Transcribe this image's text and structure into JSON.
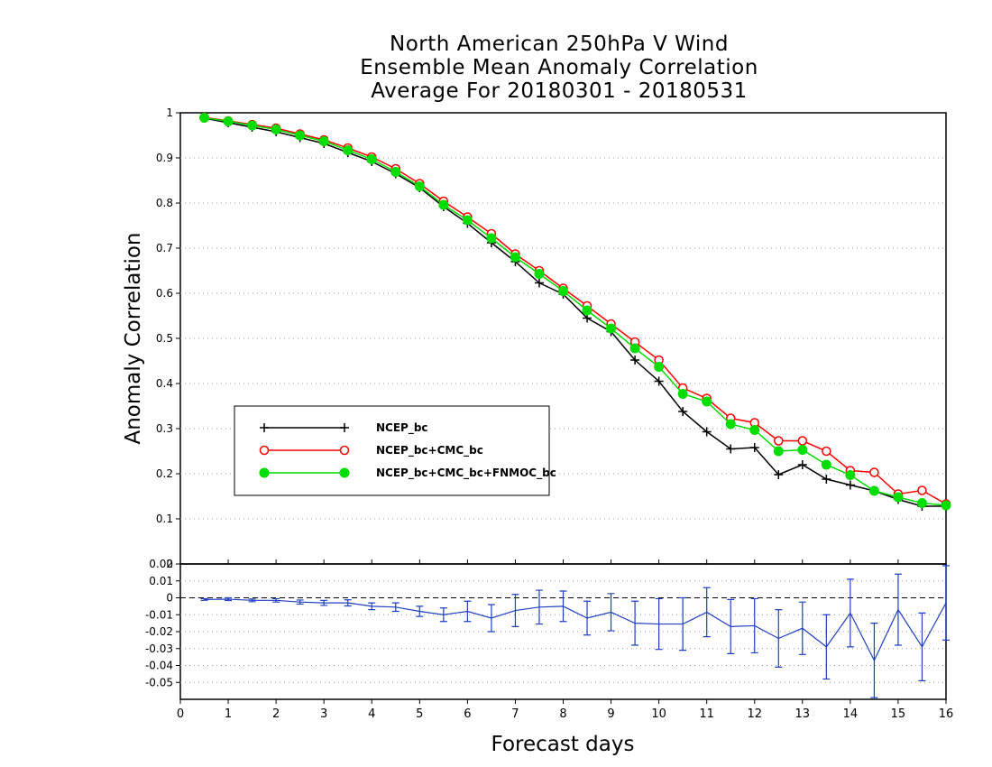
{
  "title_lines": [
    "North American 250hPa V Wind",
    "Ensemble Mean Anomaly Correlation",
    "Average For 20180301 - 20180531"
  ],
  "chart_data": [
    {
      "type": "line",
      "title": "North American 250hPa V Wind Ensemble Mean Anomaly Correlation Average For 20180301 - 20180531",
      "xlabel": "Forecast days",
      "ylabel": "Anomaly Correlation",
      "xlim": [
        0,
        16
      ],
      "ylim": [
        0,
        1
      ],
      "x_ticks": [
        "0",
        "1",
        "2",
        "3",
        "4",
        "5",
        "6",
        "7",
        "8",
        "9",
        "10",
        "11",
        "12",
        "13",
        "14",
        "15",
        "16"
      ],
      "y_ticks": [
        "0.1",
        "0.2",
        "0.3",
        "0.4",
        "0.5",
        "0.6",
        "0.7",
        "0.8",
        "0.9",
        "1"
      ],
      "grid": "horizontal dotted",
      "legend_position": "left-middle",
      "x": [
        0.5,
        1,
        1.5,
        2,
        2.5,
        3,
        3.5,
        4,
        4.5,
        5,
        5.5,
        6,
        6.5,
        7,
        7.5,
        8,
        8.5,
        9,
        9.5,
        10,
        10.5,
        11,
        11.5,
        12,
        12.5,
        13,
        13.5,
        14,
        14.5,
        15,
        15.5,
        16
      ],
      "series": [
        {
          "name": "NCEP_bc",
          "color": "#000000",
          "marker": "plus",
          "values": [
            0.988,
            0.978,
            0.968,
            0.958,
            0.945,
            0.932,
            0.912,
            0.892,
            0.865,
            0.834,
            0.792,
            0.755,
            0.712,
            0.67,
            0.623,
            0.598,
            0.545,
            0.515,
            0.452,
            0.405,
            0.338,
            0.293,
            0.255,
            0.258,
            0.198,
            0.22,
            0.188,
            0.175,
            0.162,
            0.143,
            0.128,
            0.128
          ]
        },
        {
          "name": "NCEP_bc+CMC_bc",
          "color": "#ff0000",
          "marker": "open-circle",
          "values": [
            0.99,
            0.982,
            0.974,
            0.966,
            0.953,
            0.94,
            0.922,
            0.902,
            0.876,
            0.843,
            0.804,
            0.769,
            0.732,
            0.687,
            0.65,
            0.611,
            0.572,
            0.532,
            0.492,
            0.452,
            0.39,
            0.367,
            0.323,
            0.313,
            0.273,
            0.273,
            0.25,
            0.207,
            0.203,
            0.155,
            0.163,
            0.133
          ]
        },
        {
          "name": "NCEP_bc+CMC_bc+FNMOC_bc",
          "color": "#00dd00",
          "marker": "filled-circle",
          "values": [
            0.989,
            0.981,
            0.972,
            0.963,
            0.95,
            0.937,
            0.917,
            0.897,
            0.869,
            0.837,
            0.796,
            0.762,
            0.722,
            0.68,
            0.643,
            0.605,
            0.562,
            0.522,
            0.478,
            0.437,
            0.377,
            0.36,
            0.31,
            0.297,
            0.25,
            0.253,
            0.22,
            0.197,
            0.162,
            0.148,
            0.135,
            0.13
          ]
        }
      ]
    },
    {
      "type": "line",
      "xlabel": "Forecast days",
      "xlim": [
        0,
        16
      ],
      "ylim": [
        -0.06,
        0.02
      ],
      "y_ticks": [
        "0.02",
        "0.01",
        "0",
        "-0.01",
        "-0.02",
        "-0.03",
        "-0.04",
        "-0.05"
      ],
      "grid": "horizontal dotted",
      "zero_line": "dashed",
      "x": [
        0.5,
        1,
        1.5,
        2,
        2.5,
        3,
        3.5,
        4,
        4.5,
        5,
        5.5,
        6,
        6.5,
        7,
        7.5,
        8,
        8.5,
        9,
        9.5,
        10,
        10.5,
        11,
        11.5,
        12,
        12.5,
        13,
        13.5,
        14,
        14.5,
        15,
        15.5,
        16
      ],
      "series": [
        {
          "color": "#2040c0",
          "marker": "error-bar",
          "values": [
            -0.001,
            -0.0008,
            -0.0015,
            -0.0015,
            -0.0025,
            -0.003,
            -0.003,
            -0.005,
            -0.0055,
            -0.008,
            -0.01,
            -0.008,
            -0.012,
            -0.0075,
            -0.0055,
            -0.005,
            -0.012,
            -0.0085,
            -0.015,
            -0.0155,
            -0.0155,
            -0.0085,
            -0.017,
            -0.0165,
            -0.024,
            -0.018,
            -0.029,
            -0.009,
            -0.037,
            -0.007,
            -0.029,
            -0.003
          ],
          "error": [
            0.0005,
            0.0008,
            0.0008,
            0.001,
            0.0012,
            0.0015,
            0.0018,
            0.002,
            0.0025,
            0.003,
            0.004,
            0.006,
            0.008,
            0.0095,
            0.01,
            0.009,
            0.01,
            0.011,
            0.013,
            0.015,
            0.0155,
            0.0145,
            0.016,
            0.016,
            0.017,
            0.0155,
            0.019,
            0.02,
            0.022,
            0.021,
            0.02,
            0.022
          ]
        }
      ]
    }
  ]
}
